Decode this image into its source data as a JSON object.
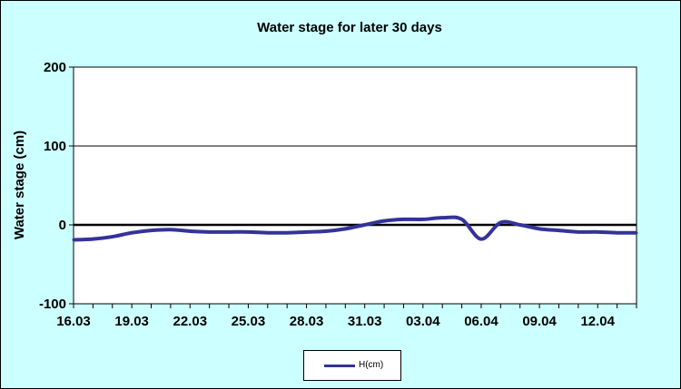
{
  "chart_data": {
    "type": "line",
    "title": "Water stage for later 30 days",
    "xlabel": "",
    "ylabel": "Water stage (cm)",
    "ylim": [
      -100,
      200
    ],
    "yticks": [
      "200",
      "100",
      "0",
      "-100"
    ],
    "x": [
      "16.03",
      "17.03",
      "18.03",
      "19.03",
      "20.03",
      "21.03",
      "22.03",
      "23.03",
      "24.03",
      "25.03",
      "26.03",
      "27.03",
      "28.03",
      "29.03",
      "30.03",
      "31.03",
      "01.04",
      "02.04",
      "03.04",
      "04.04",
      "05.04",
      "06.04",
      "07.04",
      "08.04",
      "09.04",
      "10.04",
      "11.04",
      "12.04",
      "13.04",
      "14.04"
    ],
    "x_tick_labels": [
      "16.03",
      "19.03",
      "22.03",
      "25.03",
      "28.03",
      "31.03",
      "03.04",
      "06.04",
      "09.04",
      "12.04"
    ],
    "series": [
      {
        "name": "H(cm)",
        "values": [
          -19,
          -18,
          -15,
          -10,
          -7,
          -6,
          -8,
          -9,
          -9,
          -9,
          -10,
          -10,
          -9,
          -8,
          -5,
          0,
          5,
          7,
          7,
          9,
          7,
          -18,
          3,
          0,
          -5,
          -7,
          -9,
          -9,
          -10,
          -10
        ],
        "color": "#333399"
      }
    ],
    "grid": "horizontal major lines",
    "legend_position": "bottom-center",
    "colors": {
      "background": "#ccffff",
      "plot_area": "#ffffff",
      "line": "#333399"
    }
  }
}
